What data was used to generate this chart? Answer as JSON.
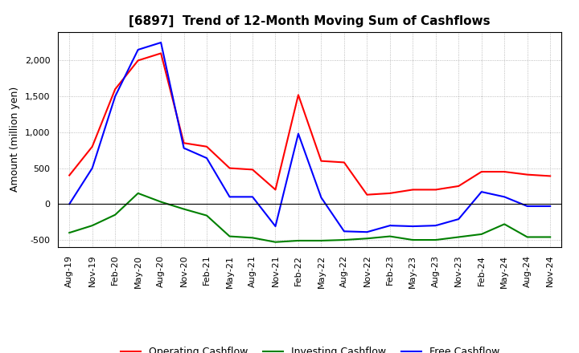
{
  "title": "[6897]  Trend of 12-Month Moving Sum of Cashflows",
  "ylabel": "Amount (million yen)",
  "xlabels": [
    "Aug-19",
    "Nov-19",
    "Feb-20",
    "May-20",
    "Aug-20",
    "Nov-20",
    "Feb-21",
    "May-21",
    "Aug-21",
    "Nov-21",
    "Feb-22",
    "May-22",
    "Aug-22",
    "Nov-22",
    "Feb-23",
    "May-23",
    "Aug-23",
    "Nov-23",
    "Feb-24",
    "May-24",
    "Aug-24",
    "Nov-24"
  ],
  "operating_cashflow": [
    400,
    800,
    1600,
    2000,
    2100,
    850,
    800,
    500,
    480,
    200,
    1520,
    600,
    580,
    130,
    150,
    200,
    200,
    250,
    450,
    450,
    410,
    390
  ],
  "investing_cashflow": [
    -400,
    -300,
    -150,
    150,
    30,
    -70,
    -160,
    -450,
    -470,
    -530,
    -510,
    -510,
    -500,
    -480,
    -450,
    -500,
    -500,
    -460,
    -420,
    -280,
    -460,
    -460
  ],
  "free_cashflow": [
    0,
    500,
    1500,
    2150,
    2250,
    780,
    640,
    100,
    100,
    -310,
    980,
    90,
    -380,
    -390,
    -300,
    -310,
    -300,
    -210,
    170,
    100,
    -30,
    -30
  ],
  "operating_color": "#ff0000",
  "investing_color": "#008000",
  "free_color": "#0000ff",
  "ylim": [
    -600,
    2400
  ],
  "yticks": [
    -500,
    0,
    500,
    1000,
    1500,
    2000
  ],
  "line_width": 1.5,
  "bg_color": "#ffffff",
  "plot_bg_color": "#ffffff",
  "grid_color": "#aaaaaa",
  "legend_labels": [
    "Operating Cashflow",
    "Investing Cashflow",
    "Free Cashflow"
  ],
  "title_fontsize": 11,
  "ylabel_fontsize": 9,
  "tick_fontsize": 8,
  "legend_fontsize": 9
}
